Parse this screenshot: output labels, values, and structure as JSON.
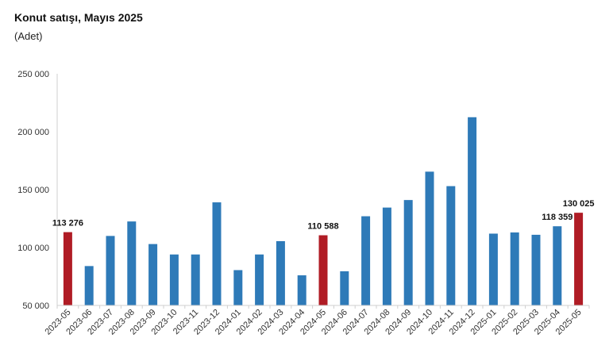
{
  "title": "Konut satışı, Mayıs 2025",
  "subtitle": "(Adet)",
  "colors": {
    "normal": "#2e7ab8",
    "highlight": "#b01c25",
    "axis": "#cfcfcf"
  },
  "chart_data": {
    "type": "bar",
    "title": "Konut satışı, Mayıs 2025",
    "subtitle": "(Adet)",
    "xlabel": "",
    "ylabel": "",
    "ylim": [
      50000,
      250000
    ],
    "yticks": [
      50000,
      100000,
      150000,
      200000,
      250000
    ],
    "ytick_labels": [
      "50 000",
      "100 000",
      "150 000",
      "200 000",
      "250 000"
    ],
    "grid": false,
    "legend": "none",
    "categories": [
      "2023-05",
      "2023-06",
      "2023-07",
      "2023-08",
      "2023-09",
      "2023-10",
      "2023-11",
      "2023-12",
      "2024-01",
      "2024-02",
      "2024-03",
      "2024-04",
      "2024-05",
      "2024-06",
      "2024-07",
      "2024-08",
      "2024-09",
      "2024-10",
      "2024-11",
      "2024-12",
      "2025-01",
      "2025-02",
      "2025-03",
      "2025-04",
      "2025-05"
    ],
    "values": [
      113276,
      84000,
      110000,
      122500,
      103000,
      94000,
      94000,
      139000,
      80500,
      94000,
      105500,
      76000,
      110588,
      79500,
      127000,
      134500,
      141000,
      165500,
      153000,
      212500,
      112000,
      113000,
      111000,
      118359,
      130025
    ],
    "highlighted": [
      "2023-05",
      "2024-05",
      "2025-05"
    ],
    "data_labels": [
      {
        "category": "2023-05",
        "text": "113 276"
      },
      {
        "category": "2024-05",
        "text": "110 588"
      },
      {
        "category": "2025-04",
        "text": "118 359"
      },
      {
        "category": "2025-05",
        "text": "130 025"
      }
    ]
  }
}
